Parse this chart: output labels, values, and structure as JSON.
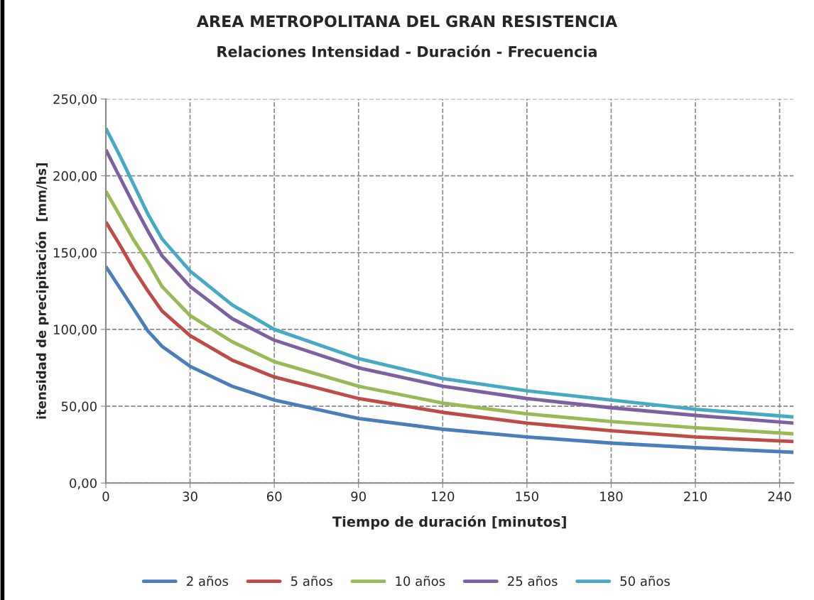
{
  "chart_data": {
    "type": "line",
    "title": "AREA METROPOLITANA DEL GRAN RESISTENCIA",
    "subtitle": "Relaciones Intensidad - Duración - Frecuencia",
    "xlabel": "Tiempo de duración [minutos]",
    "ylabel": "itensidad de precipitación  [mm/hs]",
    "x": [
      0,
      5,
      10,
      15,
      20,
      30,
      45,
      60,
      90,
      120,
      150,
      180,
      210,
      245
    ],
    "series": [
      {
        "name": "2 años",
        "color": "#4a7ebb",
        "values": [
          141,
          127,
          113,
          99,
          89,
          76,
          63,
          54,
          42,
          35,
          30,
          26,
          23,
          20
        ]
      },
      {
        "name": "5 años",
        "color": "#be4b48",
        "values": [
          170,
          155,
          139,
          125,
          112,
          96,
          80,
          69,
          55,
          46,
          39,
          34,
          30,
          27
        ]
      },
      {
        "name": "10 años",
        "color": "#98b954",
        "values": [
          190,
          174,
          158,
          144,
          128,
          109,
          92,
          79,
          63,
          52,
          45,
          40,
          36,
          32
        ]
      },
      {
        "name": "25 años",
        "color": "#7d60a0",
        "values": [
          217,
          199,
          181,
          164,
          148,
          128,
          107,
          93,
          75,
          63,
          55,
          49,
          44,
          39
        ]
      },
      {
        "name": "50 años",
        "color": "#46aac5",
        "values": [
          231,
          213,
          194,
          175,
          159,
          138,
          116,
          100,
          81,
          68,
          60,
          54,
          48,
          43
        ]
      }
    ],
    "xlim": [
      0,
      245
    ],
    "xticks": [
      0,
      30,
      60,
      90,
      120,
      150,
      180,
      210,
      240
    ],
    "ylim": [
      0,
      250
    ],
    "yticks": [
      {
        "value": 0,
        "label": "0,00"
      },
      {
        "value": 50,
        "label": "50,00"
      },
      {
        "value": 100,
        "label": "100,00"
      },
      {
        "value": 150,
        "label": "150,00"
      },
      {
        "value": 200,
        "label": "200,00"
      },
      {
        "value": 250,
        "label": "250,00"
      }
    ],
    "grid": true,
    "legend": "bottom",
    "marker": "none",
    "line_style": "solid"
  }
}
